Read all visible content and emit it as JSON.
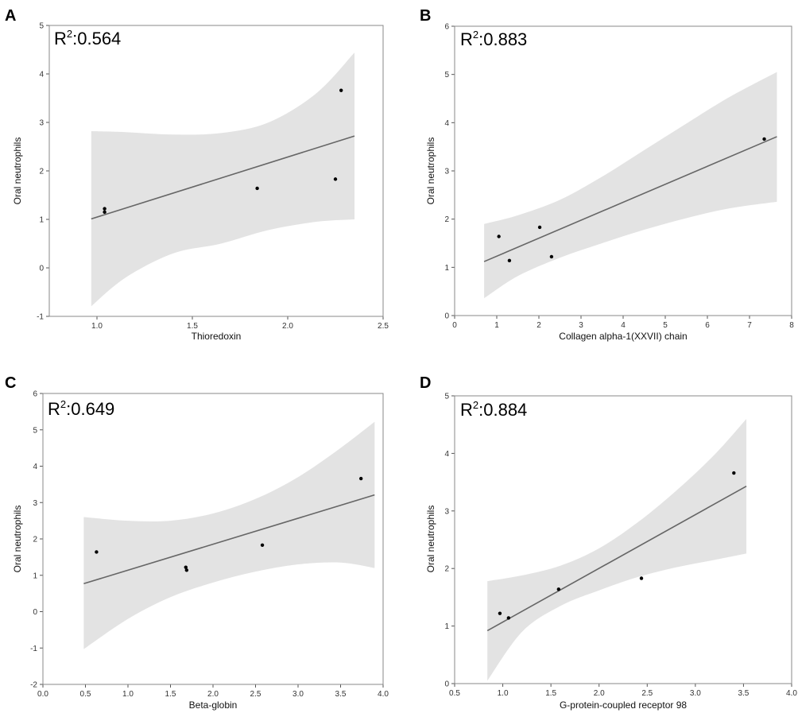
{
  "figure": {
    "band_color": "#e3e3e3",
    "line_color": "#666666",
    "point_color": "#000000",
    "frame_color": "#888888"
  },
  "chart_data": [
    {
      "panel": "A",
      "type": "scatter",
      "r2_base": "R",
      "r2_sup": "2",
      "r2_value": ":0.564",
      "xlabel": "Thioredoxin",
      "ylabel": "Oral neutrophils",
      "xlim": [
        0.75,
        2.5
      ],
      "ylim": [
        -1,
        5
      ],
      "xticks": [
        1.0,
        1.5,
        2.0,
        2.5
      ],
      "xtick_labels": [
        "1.0",
        "1.5",
        "2.0",
        "2.5"
      ],
      "yticks": [
        -1,
        0,
        1,
        2,
        3,
        4,
        5
      ],
      "ytick_labels": [
        "-1",
        "0",
        "1",
        "2",
        "3",
        "4",
        "5"
      ],
      "points": [
        [
          1.04,
          1.22
        ],
        [
          1.04,
          1.15
        ],
        [
          1.84,
          1.64
        ],
        [
          2.25,
          1.83
        ],
        [
          2.28,
          3.66
        ]
      ],
      "fit_line": [
        [
          0.97,
          1.01
        ],
        [
          2.35,
          2.72
        ]
      ],
      "band_upper": [
        [
          0.97,
          2.82
        ],
        [
          1.15,
          2.8
        ],
        [
          1.4,
          2.75
        ],
        [
          1.65,
          2.78
        ],
        [
          1.9,
          3.0
        ],
        [
          2.15,
          3.6
        ],
        [
          2.35,
          4.44
        ]
      ],
      "band_lower": [
        [
          0.97,
          -0.79
        ],
        [
          1.15,
          -0.2
        ],
        [
          1.4,
          0.3
        ],
        [
          1.65,
          0.5
        ],
        [
          1.9,
          0.78
        ],
        [
          2.15,
          0.95
        ],
        [
          2.35,
          1.0
        ]
      ]
    },
    {
      "panel": "B",
      "type": "scatter",
      "r2_base": "R",
      "r2_sup": "2",
      "r2_value": ":0.883",
      "xlabel": "Collagen alpha-1(XXVII) chain",
      "ylabel": "Oral neutrophils",
      "xlim": [
        0,
        8
      ],
      "ylim": [
        0,
        6
      ],
      "xticks": [
        0,
        1,
        2,
        3,
        4,
        5,
        6,
        7,
        8
      ],
      "xtick_labels": [
        "0",
        "1",
        "2",
        "3",
        "4",
        "5",
        "6",
        "7",
        "8"
      ],
      "yticks": [
        0,
        1,
        2,
        3,
        4,
        5,
        6
      ],
      "ytick_labels": [
        "0",
        "1",
        "2",
        "3",
        "4",
        "5",
        "6"
      ],
      "points": [
        [
          1.05,
          1.64
        ],
        [
          1.3,
          1.14
        ],
        [
          2.02,
          1.83
        ],
        [
          2.3,
          1.22
        ],
        [
          7.35,
          3.66
        ]
      ],
      "fit_line": [
        [
          0.7,
          1.12
        ],
        [
          7.65,
          3.71
        ]
      ],
      "band_upper": [
        [
          0.7,
          1.9
        ],
        [
          1.5,
          2.08
        ],
        [
          2.5,
          2.4
        ],
        [
          3.5,
          2.88
        ],
        [
          4.5,
          3.43
        ],
        [
          5.5,
          3.98
        ],
        [
          6.5,
          4.52
        ],
        [
          7.65,
          5.05
        ]
      ],
      "band_lower": [
        [
          0.7,
          0.36
        ],
        [
          1.5,
          0.82
        ],
        [
          2.5,
          1.2
        ],
        [
          3.5,
          1.5
        ],
        [
          4.5,
          1.78
        ],
        [
          5.5,
          2.02
        ],
        [
          6.5,
          2.22
        ],
        [
          7.65,
          2.36
        ]
      ]
    },
    {
      "panel": "C",
      "type": "scatter",
      "r2_base": "R",
      "r2_sup": "2",
      "r2_value": ":0.649",
      "xlabel": "Beta-globin",
      "ylabel": "Oral neutrophils",
      "xlim": [
        0,
        4
      ],
      "ylim": [
        -2,
        6
      ],
      "xticks": [
        0.0,
        0.5,
        1.0,
        1.5,
        2.0,
        2.5,
        3.0,
        3.5,
        4.0
      ],
      "xtick_labels": [
        "0.0",
        "0.5",
        "1.0",
        "1.5",
        "2.0",
        "2.5",
        "3.0",
        "3.5",
        "4.0"
      ],
      "yticks": [
        -2,
        -1,
        0,
        1,
        2,
        3,
        4,
        5,
        6
      ],
      "ytick_labels": [
        "-2",
        "-1",
        "0",
        "1",
        "2",
        "3",
        "4",
        "5",
        "6"
      ],
      "points": [
        [
          0.63,
          1.64
        ],
        [
          1.68,
          1.22
        ],
        [
          1.69,
          1.14
        ],
        [
          2.58,
          1.83
        ],
        [
          3.74,
          3.66
        ]
      ],
      "fit_line": [
        [
          0.48,
          0.77
        ],
        [
          3.9,
          3.21
        ]
      ],
      "band_upper": [
        [
          0.48,
          2.6
        ],
        [
          1.0,
          2.5
        ],
        [
          1.5,
          2.5
        ],
        [
          2.0,
          2.7
        ],
        [
          2.5,
          3.1
        ],
        [
          3.0,
          3.7
        ],
        [
          3.5,
          4.5
        ],
        [
          3.9,
          5.22
        ]
      ],
      "band_lower": [
        [
          0.48,
          -1.03
        ],
        [
          1.0,
          -0.2
        ],
        [
          1.5,
          0.4
        ],
        [
          2.0,
          0.8
        ],
        [
          2.5,
          1.1
        ],
        [
          3.0,
          1.3
        ],
        [
          3.5,
          1.35
        ],
        [
          3.9,
          1.2
        ]
      ]
    },
    {
      "panel": "D",
      "type": "scatter",
      "r2_base": "R",
      "r2_sup": "2",
      "r2_value": ":0.884",
      "xlabel": "G-protein-coupled receptor 98",
      "ylabel": "Oral neutrophils",
      "xlim": [
        0.5,
        4.0
      ],
      "ylim": [
        0,
        5
      ],
      "xticks": [
        0.5,
        1.0,
        1.5,
        2.0,
        2.5,
        3.0,
        3.5,
        4.0
      ],
      "xtick_labels": [
        "0.5",
        "1.0",
        "1.5",
        "2.0",
        "2.5",
        "3.0",
        "3.5",
        "4.0"
      ],
      "yticks": [
        0,
        1,
        2,
        3,
        4,
        5
      ],
      "ytick_labels": [
        "0",
        "1",
        "2",
        "3",
        "4",
        "5"
      ],
      "points": [
        [
          0.97,
          1.22
        ],
        [
          1.06,
          1.14
        ],
        [
          1.58,
          1.64
        ],
        [
          2.44,
          1.83
        ],
        [
          3.4,
          3.66
        ]
      ],
      "fit_line": [
        [
          0.84,
          0.92
        ],
        [
          3.53,
          3.43
        ]
      ],
      "band_upper": [
        [
          0.84,
          1.78
        ],
        [
          1.2,
          1.88
        ],
        [
          1.6,
          2.05
        ],
        [
          2.0,
          2.35
        ],
        [
          2.4,
          2.8
        ],
        [
          2.8,
          3.35
        ],
        [
          3.2,
          3.98
        ],
        [
          3.53,
          4.6
        ]
      ],
      "band_lower": [
        [
          0.84,
          0.05
        ],
        [
          1.2,
          0.9
        ],
        [
          1.6,
          1.35
        ],
        [
          2.0,
          1.62
        ],
        [
          2.4,
          1.85
        ],
        [
          2.8,
          2.02
        ],
        [
          3.2,
          2.15
        ],
        [
          3.53,
          2.26
        ]
      ]
    }
  ]
}
